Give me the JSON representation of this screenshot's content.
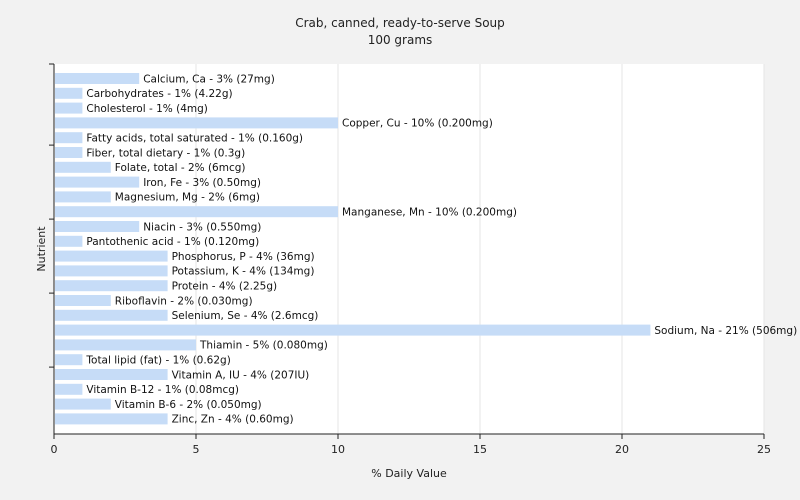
{
  "chart_data": {
    "type": "bar",
    "orientation": "horizontal",
    "title": "Crab, canned, ready-to-serve Soup",
    "subtitle": "100 grams",
    "xlabel": "% Daily Value",
    "ylabel": "Nutrient",
    "xlim": [
      0,
      25
    ],
    "xticks": [
      "0",
      "5",
      "10",
      "15",
      "20",
      "25"
    ],
    "grid": true,
    "bar_color": "#c6dcf7",
    "categories": [
      "Calcium, Ca",
      "Carbohydrates",
      "Cholesterol",
      "Copper, Cu",
      "Fatty acids, total saturated",
      "Fiber, total dietary",
      "Folate, total",
      "Iron, Fe",
      "Magnesium, Mg",
      "Manganese, Mn",
      "Niacin",
      "Pantothenic acid",
      "Phosphorus, P",
      "Potassium, K",
      "Protein",
      "Riboflavin",
      "Selenium, Se",
      "Sodium, Na",
      "Thiamin",
      "Total lipid (fat)",
      "Vitamin A, IU",
      "Vitamin B-12",
      "Vitamin B-6",
      "Zinc, Zn"
    ],
    "values": [
      3,
      1,
      1,
      10,
      1,
      1,
      2,
      3,
      2,
      10,
      3,
      1,
      4,
      4,
      4,
      2,
      4,
      21,
      5,
      1,
      4,
      1,
      2,
      4
    ],
    "labels": [
      "Calcium, Ca - 3% (27mg)",
      "Carbohydrates - 1% (4.22g)",
      "Cholesterol - 1% (4mg)",
      "Copper, Cu - 10% (0.200mg)",
      "Fatty acids, total saturated - 1% (0.160g)",
      "Fiber, total dietary - 1% (0.3g)",
      "Folate, total - 2% (6mcg)",
      "Iron, Fe - 3% (0.50mg)",
      "Magnesium, Mg - 2% (6mg)",
      "Manganese, Mn - 10% (0.200mg)",
      "Niacin - 3% (0.550mg)",
      "Pantothenic acid - 1% (0.120mg)",
      "Phosphorus, P - 4% (36mg)",
      "Potassium, K - 4% (134mg)",
      "Protein - 4% (2.25g)",
      "Riboflavin - 2% (0.030mg)",
      "Selenium, Se - 4% (2.6mcg)",
      "Sodium, Na - 21% (506mg)",
      "Thiamin - 5% (0.080mg)",
      "Total lipid (fat) - 1% (0.62g)",
      "Vitamin A, IU - 4% (207IU)",
      "Vitamin B-12 - 1% (0.08mcg)",
      "Vitamin B-6 - 2% (0.050mg)",
      "Zinc, Zn - 4% (0.60mg)"
    ]
  }
}
